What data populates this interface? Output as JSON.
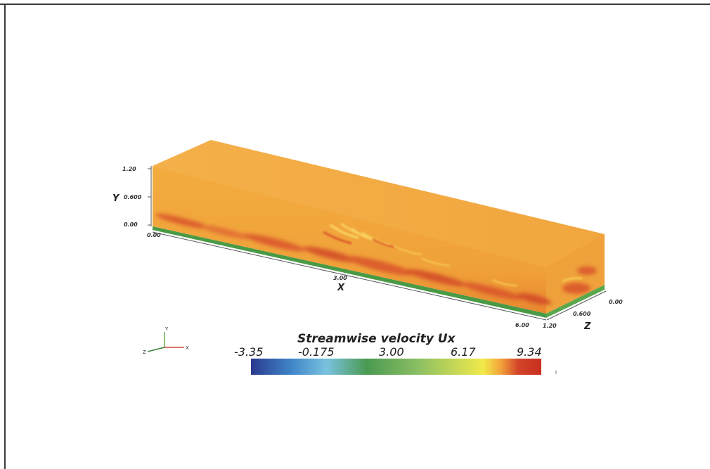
{
  "axes": {
    "y": {
      "label": "Y",
      "ticks": [
        "1.20",
        "0.600",
        "0.00"
      ]
    },
    "x": {
      "label": "X",
      "ticks": [
        "0.00",
        "3.00",
        "6.00"
      ]
    },
    "z": {
      "label": "Z",
      "ticks": [
        "0.00",
        "0.600",
        "1.20"
      ]
    }
  },
  "colorbar": {
    "title": "Streamwise velocity Ux",
    "labels": [
      "-3.35",
      "-0.175",
      "3.00",
      "6.17",
      "9.34"
    ],
    "range": [
      -3.35,
      9.34
    ],
    "colors": [
      "#2b3a8f",
      "#3f86c8",
      "#79c2df",
      "#4a9a52",
      "#8dc063",
      "#f1ea4b",
      "#f2a33a",
      "#d2452a",
      "#c8301e"
    ]
  },
  "orientation_triad": {
    "labels": [
      "Y",
      "X",
      "Z"
    ]
  },
  "field_colors": {
    "bulk": "#f2a43a",
    "streak": "#d9532b",
    "highlight": "#f8d256",
    "wall": "#4a9a45"
  }
}
